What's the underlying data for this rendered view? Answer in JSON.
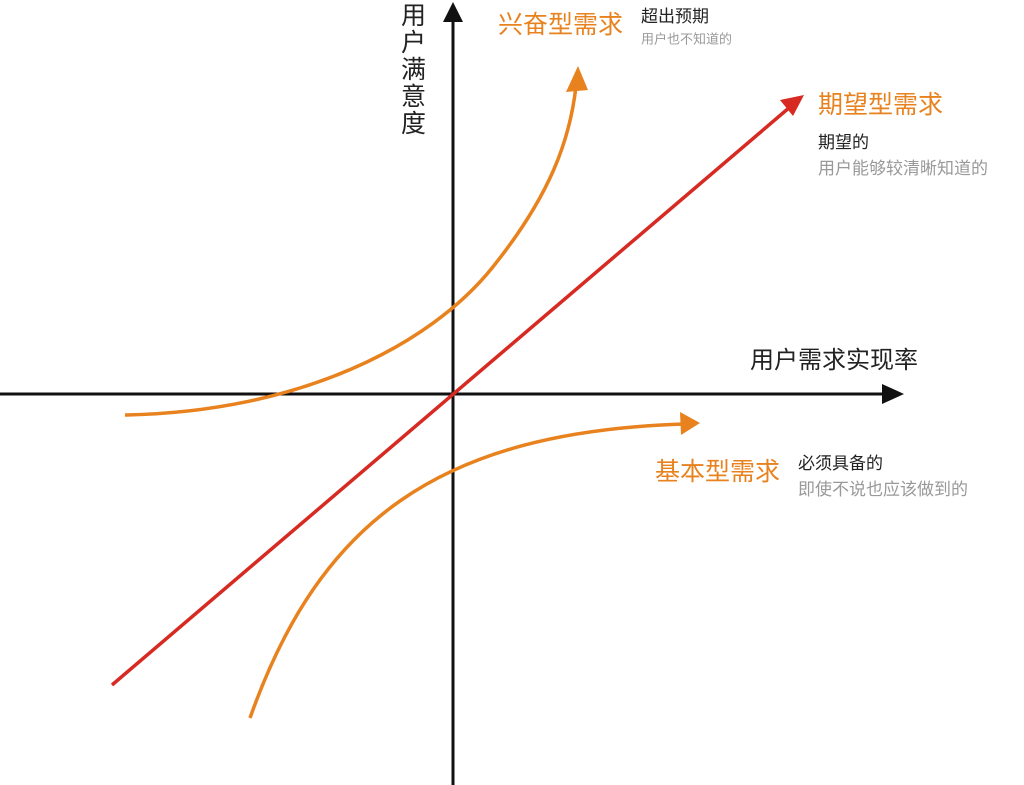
{
  "axes": {
    "y_label": "用户满意度",
    "x_label": "用户需求实现率"
  },
  "curves": [
    {
      "label": "兴奋型需求",
      "note": "超出预期",
      "detail": "用户也不知道的"
    },
    {
      "label": "期望型需求",
      "note": "期望的",
      "detail": "用户能够较清晰知道的"
    },
    {
      "label": "基本型需求",
      "note": "必须具备的",
      "detail": "即使不说也应该做到的"
    }
  ]
}
